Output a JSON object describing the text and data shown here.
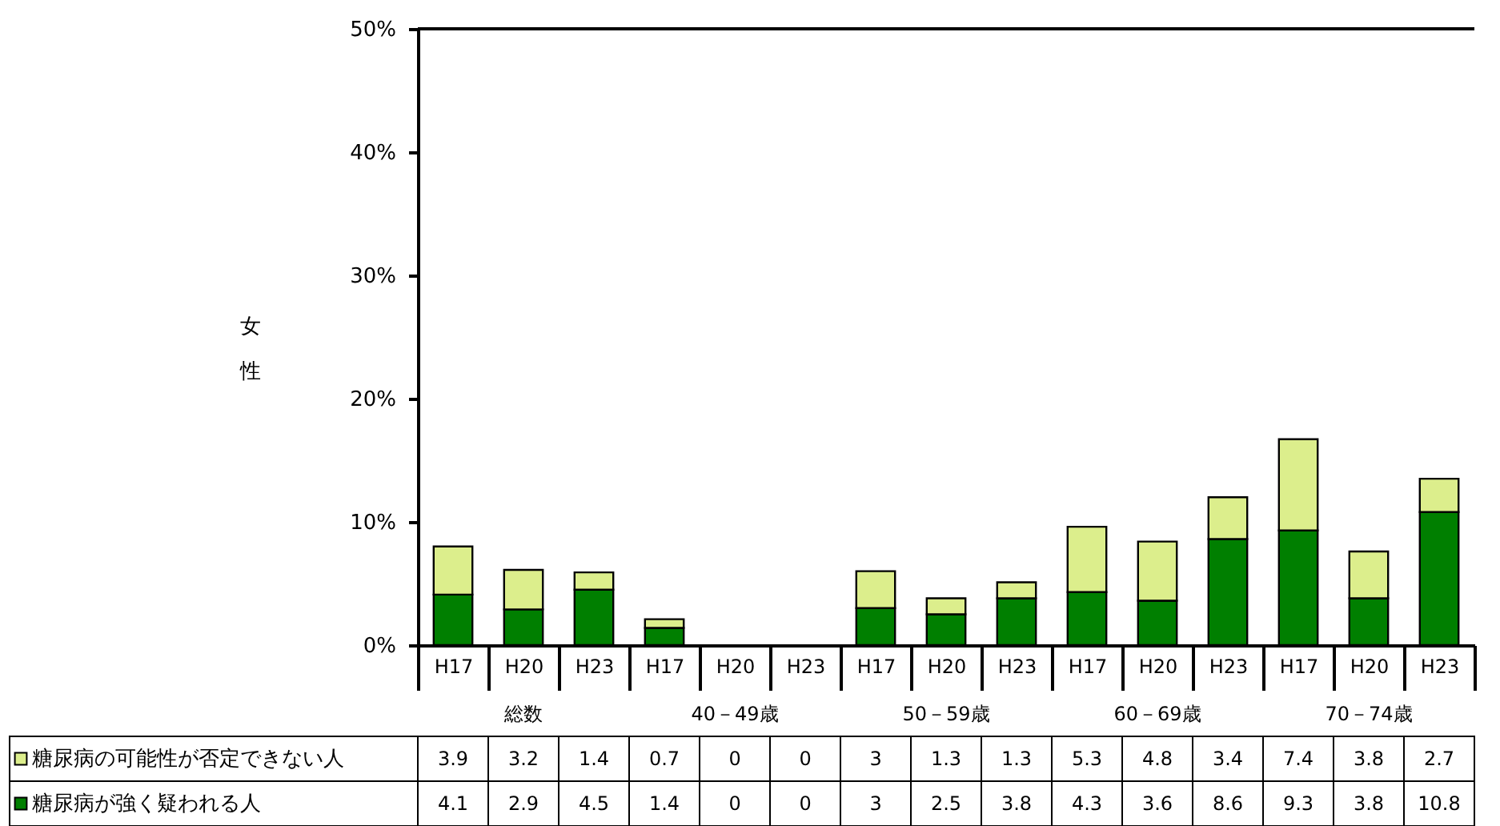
{
  "chart_data": {
    "type": "bar",
    "stacked": true,
    "ylabel": "女性",
    "categories": [
      "H17",
      "H20",
      "H23",
      "H17",
      "H20",
      "H23",
      "H17",
      "H20",
      "H23",
      "H17",
      "H20",
      "H23",
      "H17",
      "H20",
      "H23"
    ],
    "series": [
      {
        "name": "糖尿病が強く疑われる人",
        "color": "#007f00",
        "values": [
          4.1,
          2.9,
          4.5,
          1.4,
          0,
          0,
          3,
          2.5,
          3.8,
          4.3,
          3.6,
          8.6,
          9.3,
          3.8,
          10.8
        ]
      },
      {
        "name": "糖尿病の可能性が否定できない人",
        "color": "#dcee8c",
        "values": [
          3.9,
          3.2,
          1.4,
          0.7,
          0,
          0,
          3,
          1.3,
          1.3,
          5.3,
          4.8,
          3.4,
          7.4,
          3.8,
          2.7
        ]
      }
    ],
    "annotations": [
      "総数",
      "40－49歳",
      "50－59歳",
      "60－69歳",
      "70－74歳"
    ],
    "ylim": [
      0,
      50
    ],
    "yticks": [
      {
        "value": 0,
        "label": "0%"
      },
      {
        "value": 10,
        "label": "10%"
      },
      {
        "value": 20,
        "label": "20%"
      },
      {
        "value": 30,
        "label": "30%"
      },
      {
        "value": 40,
        "label": "40%"
      },
      {
        "value": 50,
        "label": "50%"
      }
    ],
    "data_labels": true,
    "legend": "bottom left"
  }
}
